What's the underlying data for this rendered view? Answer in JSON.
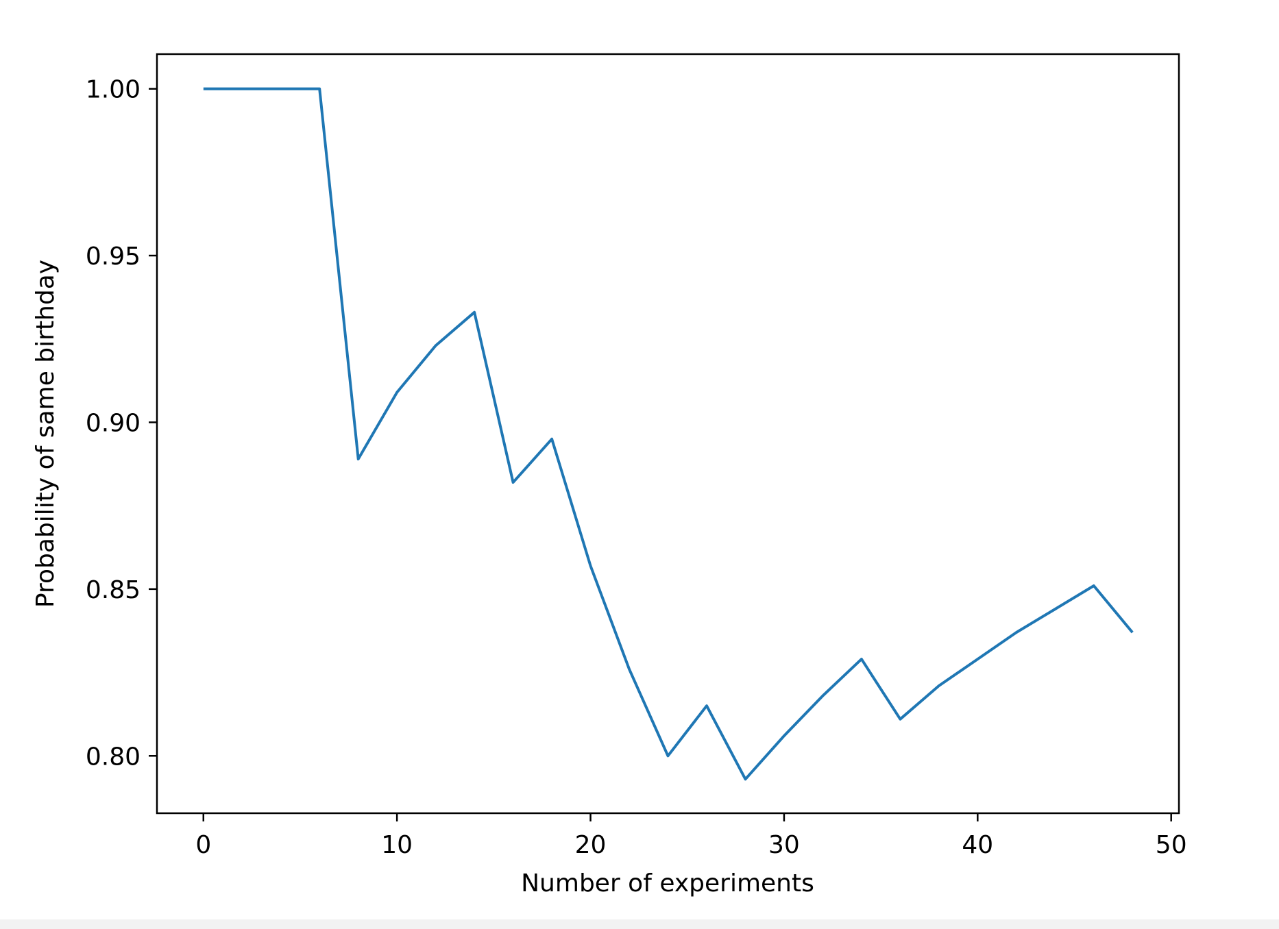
{
  "chart_data": {
    "type": "line",
    "title": "",
    "xlabel": "Number of experiments",
    "ylabel": "Probability of same birthday",
    "xlim": [
      -2.4,
      50.4
    ],
    "ylim": [
      0.7828,
      1.0104
    ],
    "xticks": [
      0,
      10,
      20,
      30,
      40,
      50
    ],
    "xtick_labels": [
      "0",
      "10",
      "20",
      "30",
      "40",
      "50"
    ],
    "yticks": [
      0.8,
      0.85,
      0.9,
      0.95,
      1.0
    ],
    "ytick_labels": [
      "0.80",
      "0.85",
      "0.90",
      "0.95",
      "1.00"
    ],
    "grid": false,
    "legend": "none",
    "series": [
      {
        "color": "#1f77b4",
        "x": [
          0,
          2,
          4,
          6,
          8,
          10,
          12,
          14,
          16,
          18,
          20,
          22,
          24,
          26,
          28,
          30,
          32,
          34,
          36,
          38,
          40,
          42,
          44,
          46,
          48
        ],
        "y": [
          1.0,
          1.0,
          1.0,
          1.0,
          0.889,
          0.909,
          0.923,
          0.933,
          0.882,
          0.895,
          0.857,
          0.826,
          0.8,
          0.815,
          0.793,
          0.806,
          0.818,
          0.829,
          0.811,
          0.821,
          0.829,
          0.837,
          0.844,
          0.851,
          0.837
        ]
      }
    ]
  }
}
